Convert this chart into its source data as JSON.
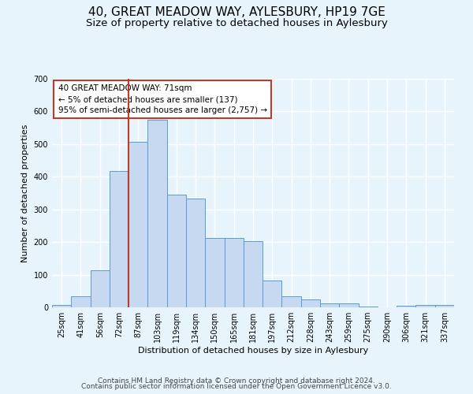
{
  "title": "40, GREAT MEADOW WAY, AYLESBURY, HP19 7GE",
  "subtitle": "Size of property relative to detached houses in Aylesbury",
  "xlabel": "Distribution of detached houses by size in Aylesbury",
  "ylabel": "Number of detached properties",
  "bar_labels": [
    "25sqm",
    "41sqm",
    "56sqm",
    "72sqm",
    "87sqm",
    "103sqm",
    "119sqm",
    "134sqm",
    "150sqm",
    "165sqm",
    "181sqm",
    "197sqm",
    "212sqm",
    "228sqm",
    "243sqm",
    "259sqm",
    "275sqm",
    "290sqm",
    "306sqm",
    "321sqm",
    "337sqm"
  ],
  "bar_values": [
    8,
    35,
    113,
    418,
    508,
    575,
    345,
    332,
    212,
    212,
    202,
    82,
    35,
    25,
    12,
    13,
    2,
    0,
    5,
    8,
    8
  ],
  "bar_color": "#c6d9f0",
  "bar_edge_color": "#5b9bd5",
  "vline_x_index": 3,
  "vline_color": "#c0392b",
  "annotation_text": "40 GREAT MEADOW WAY: 71sqm\n← 5% of detached houses are smaller (137)\n95% of semi-detached houses are larger (2,757) →",
  "annotation_box_edge": "#c0392b",
  "ylim": [
    0,
    700
  ],
  "yticks": [
    0,
    100,
    200,
    300,
    400,
    500,
    600,
    700
  ],
  "footer1": "Contains HM Land Registry data © Crown copyright and database right 2024.",
  "footer2": "Contains public sector information licensed under the Open Government Licence v3.0.",
  "bg_color": "#e8f4fc",
  "plot_bg_color": "#e8f4fc",
  "grid_color": "#ffffff",
  "title_fontsize": 11,
  "subtitle_fontsize": 9.5,
  "axis_label_fontsize": 8,
  "tick_fontsize": 7,
  "footer_fontsize": 6.5
}
